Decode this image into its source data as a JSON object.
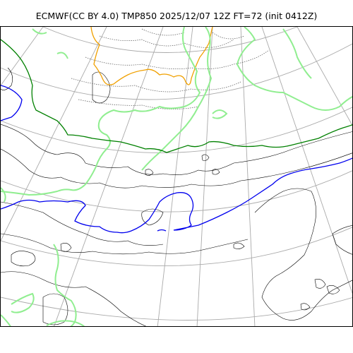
{
  "title": "ECMWF(CC BY 4.0) TMP850 2025/12/07 12Z FT=72 (init 0412Z)",
  "colors": {
    "graticule": "#aaaaaa",
    "coastline": "#000000",
    "isotherm_cold_dotted": "#555555",
    "isotherm_orange": "#f0a000",
    "isotherm_green_light": "#90ee90",
    "isotherm_green_dark": "#008000",
    "isotherm_blue": "#0000ee",
    "background": "#ffffff"
  }
}
